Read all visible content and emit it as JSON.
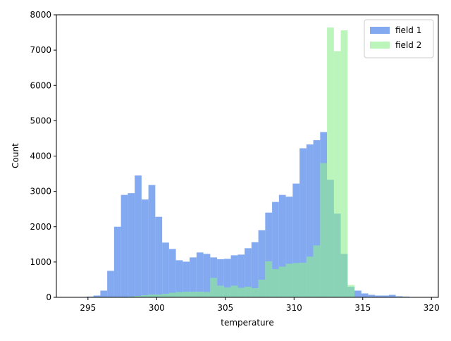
{
  "chart_data": {
    "type": "histogram",
    "x_label": "temperature",
    "y_label": "Count",
    "bins": [
      294.4,
      294.9,
      295.4,
      295.9,
      296.4,
      296.9,
      297.4,
      297.9,
      298.4,
      298.9,
      299.4,
      299.9,
      300.4,
      300.9,
      301.4,
      301.9,
      302.4,
      302.9,
      303.4,
      303.9,
      304.4,
      304.9,
      305.4,
      305.9,
      306.4,
      306.9,
      307.4,
      307.9,
      308.4,
      308.9,
      309.4,
      309.9,
      310.4,
      310.9,
      311.4,
      311.9,
      312.4,
      312.9,
      313.4,
      313.9,
      314.4,
      314.9,
      315.4,
      315.9,
      316.4,
      316.9,
      317.4,
      317.9,
      318.4,
      318.9
    ],
    "series": [
      {
        "name": "field 1",
        "color": "rgba(100,149,237,0.8)",
        "values": [
          10,
          20,
          50,
          190,
          750,
          2000,
          2900,
          2950,
          3450,
          2770,
          3180,
          2280,
          1550,
          1370,
          1050,
          1010,
          1130,
          1270,
          1230,
          1130,
          1080,
          1090,
          1190,
          1210,
          1390,
          1560,
          1900,
          2400,
          2700,
          2900,
          2850,
          3220,
          4220,
          4330,
          4450,
          4680,
          3330,
          2370,
          1230,
          300,
          190,
          110,
          70,
          50,
          50,
          70,
          30,
          20,
          10
        ]
      },
      {
        "name": "field 2",
        "color": "rgba(144,238,144,0.6)",
        "values": [
          0,
          0,
          0,
          0,
          0,
          5,
          10,
          20,
          40,
          60,
          80,
          80,
          100,
          130,
          150,
          160,
          160,
          160,
          150,
          550,
          330,
          280,
          330,
          270,
          300,
          260,
          500,
          1020,
          800,
          870,
          950,
          970,
          980,
          1150,
          1470,
          3800,
          7640,
          6970,
          7560,
          350,
          0,
          0,
          0,
          0,
          0,
          0,
          0,
          0,
          0
        ]
      }
    ],
    "xlim": [
      292.7,
      320.5
    ],
    "xticks": [
      295,
      300,
      305,
      310,
      315,
      320
    ],
    "ylim": [
      0,
      8000
    ],
    "yticks": [
      0,
      1000,
      2000,
      3000,
      4000,
      5000,
      6000,
      7000,
      8000
    ],
    "legend": "upper right"
  }
}
